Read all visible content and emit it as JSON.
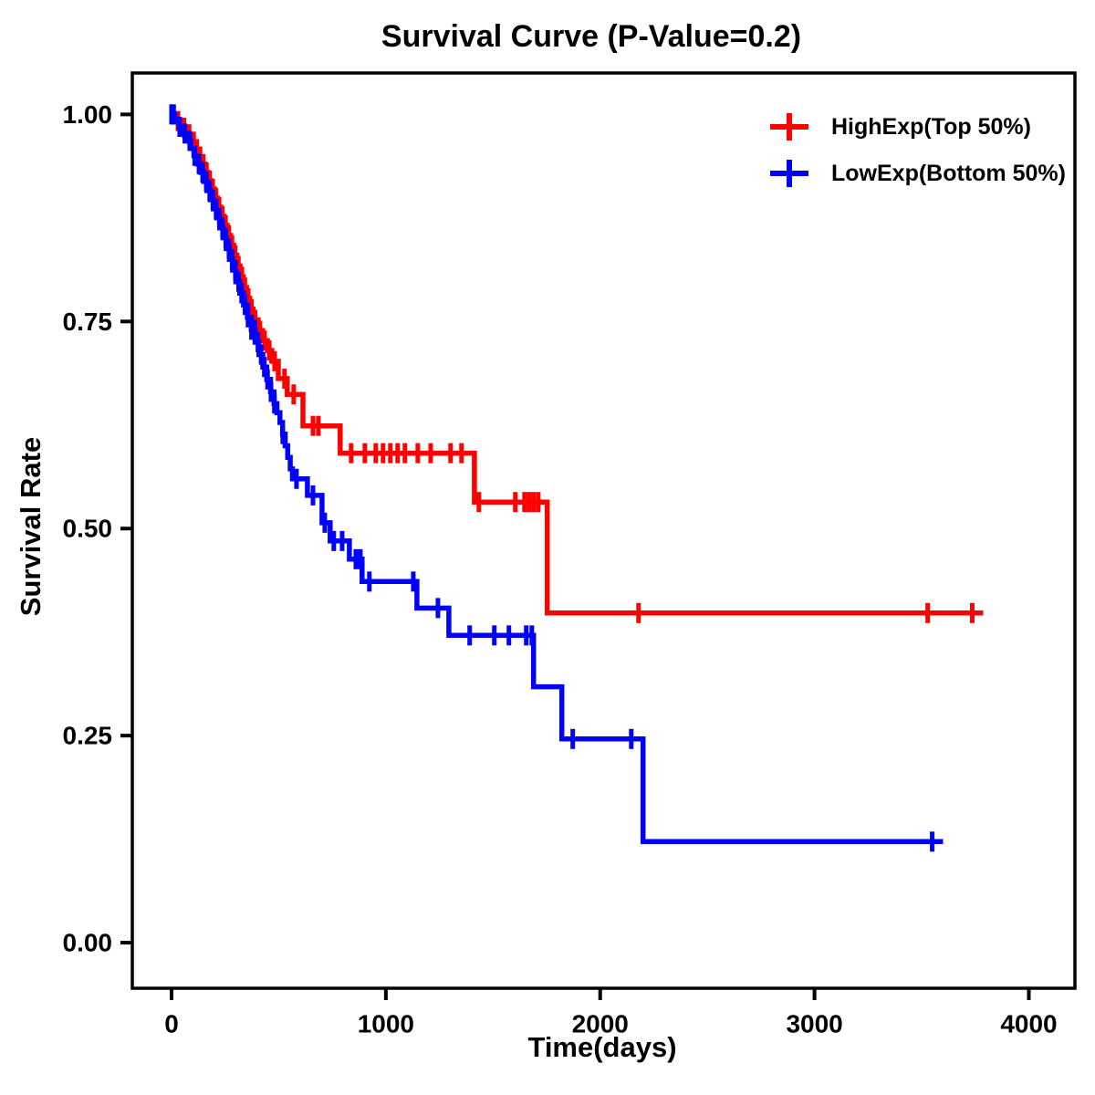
{
  "title": "Survival Curve (P-Value=0.2)",
  "x_axis": {
    "label": "Time(days)",
    "tick_labels": [
      "0",
      "1000",
      "2000",
      "3000",
      "4000"
    ],
    "tick_values": [
      0,
      1000,
      2000,
      3000,
      4000
    ],
    "lim": [
      -183,
      4215
    ]
  },
  "y_axis": {
    "label": "Survival Rate",
    "tick_labels": [
      "0.00",
      "0.25",
      "0.50",
      "0.75",
      "1.00"
    ],
    "tick_values": [
      0,
      0.25,
      0.5,
      0.75,
      1
    ],
    "lim": [
      -0.055,
      1.05
    ]
  },
  "legend": {
    "entries": [
      {
        "label": "HighExp(Top 50%)",
        "color": "#FF0000",
        "marker": "plus-cross"
      },
      {
        "label": "LowExp(Bottom 50%)",
        "color": "#0000FF",
        "marker": "plus-cross"
      }
    ]
  },
  "chart_data": {
    "type": "line",
    "subtype": "kaplan-meier-step",
    "title": "Survival Curve (P-Value=0.2)",
    "xlabel": "Time(days)",
    "ylabel": "Survival Rate",
    "xlim": [
      -183,
      4215
    ],
    "ylim": [
      -0.055,
      1.05
    ],
    "grid": false,
    "legend_position": "top-right-inside",
    "p_value": 0.2,
    "series": [
      {
        "name": "HighExp(Top 50%)",
        "color": "#FF0000",
        "start": [
          0,
          1.0
        ],
        "steps": [
          [
            20,
            0.992
          ],
          [
            45,
            0.984
          ],
          [
            70,
            0.976
          ],
          [
            95,
            0.967
          ],
          [
            110,
            0.958
          ],
          [
            125,
            0.949
          ],
          [
            140,
            0.94
          ],
          [
            155,
            0.93
          ],
          [
            170,
            0.92
          ],
          [
            185,
            0.91
          ],
          [
            200,
            0.899
          ],
          [
            215,
            0.888
          ],
          [
            230,
            0.877
          ],
          [
            245,
            0.866
          ],
          [
            260,
            0.854
          ],
          [
            275,
            0.842
          ],
          [
            290,
            0.83
          ],
          [
            305,
            0.817
          ],
          [
            320,
            0.804
          ],
          [
            335,
            0.791
          ],
          [
            350,
            0.778
          ],
          [
            365,
            0.765
          ],
          [
            380,
            0.752
          ],
          [
            404,
            0.739
          ],
          [
            425,
            0.727
          ],
          [
            447,
            0.715
          ],
          [
            468,
            0.702
          ],
          [
            498,
            0.681
          ],
          [
            540,
            0.662
          ],
          [
            613,
            0.624
          ],
          [
            787,
            0.591
          ],
          [
            1413,
            0.532
          ],
          [
            1753,
            0.398
          ]
        ],
        "end_time": 3787,
        "censor_times": [
          5,
          30,
          58,
          82,
          103,
          118,
          133,
          148,
          163,
          178,
          192,
          207,
          222,
          237,
          252,
          267,
          282,
          297,
          312,
          328,
          342,
          358,
          373,
          390,
          412,
          434,
          456,
          481,
          527,
          570,
          660,
          685,
          838,
          902,
          953,
          987,
          1021,
          1055,
          1089,
          1149,
          1209,
          1302,
          1353,
          1434,
          1604,
          1647,
          1668,
          1689,
          1711,
          2179,
          3528,
          3736
        ]
      },
      {
        "name": "LowExp(Bottom 50%)",
        "color": "#0000FF",
        "start": [
          0,
          1.0
        ],
        "steps": [
          [
            15,
            0.993
          ],
          [
            35,
            0.985
          ],
          [
            55,
            0.977
          ],
          [
            75,
            0.968
          ],
          [
            90,
            0.959
          ],
          [
            105,
            0.95
          ],
          [
            120,
            0.94
          ],
          [
            135,
            0.93
          ],
          [
            150,
            0.919
          ],
          [
            165,
            0.908
          ],
          [
            180,
            0.897
          ],
          [
            195,
            0.886
          ],
          [
            210,
            0.875
          ],
          [
            225,
            0.863
          ],
          [
            240,
            0.851
          ],
          [
            255,
            0.838
          ],
          [
            270,
            0.825
          ],
          [
            285,
            0.812
          ],
          [
            300,
            0.798
          ],
          [
            318,
            0.784
          ],
          [
            336,
            0.77
          ],
          [
            354,
            0.755
          ],
          [
            372,
            0.74
          ],
          [
            390,
            0.725
          ],
          [
            408,
            0.71
          ],
          [
            426,
            0.695
          ],
          [
            444,
            0.68
          ],
          [
            462,
            0.665
          ],
          [
            478,
            0.651
          ],
          [
            492,
            0.64
          ],
          [
            506,
            0.628
          ],
          [
            518,
            0.614
          ],
          [
            530,
            0.6
          ],
          [
            542,
            0.586
          ],
          [
            554,
            0.572
          ],
          [
            564,
            0.56
          ],
          [
            634,
            0.54
          ],
          [
            702,
            0.507
          ],
          [
            740,
            0.485
          ],
          [
            830,
            0.463
          ],
          [
            889,
            0.436
          ],
          [
            1145,
            0.404
          ],
          [
            1294,
            0.371
          ],
          [
            1689,
            0.309
          ],
          [
            1821,
            0.246
          ],
          [
            2200,
            0.122
          ]
        ],
        "end_time": 3600,
        "censor_times": [
          0,
          10,
          38,
          62,
          85,
          108,
          128,
          145,
          162,
          178,
          193,
          208,
          223,
          238,
          253,
          268,
          283,
          298,
          313,
          327,
          343,
          357,
          373,
          388,
          403,
          418,
          433,
          448,
          464,
          480,
          519,
          583,
          660,
          715,
          757,
          796,
          860,
          881,
          923,
          1128,
          1243,
          1391,
          1506,
          1574,
          1655,
          1681,
          1872,
          2145,
          3549
        ]
      }
    ]
  }
}
